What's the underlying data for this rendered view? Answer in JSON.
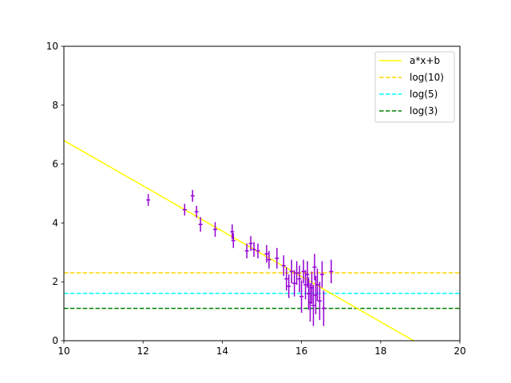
{
  "chart_data": {
    "type": "scatter",
    "title": "",
    "xlabel": "",
    "ylabel": "",
    "xlim": [
      10,
      20
    ],
    "ylim": [
      0,
      10
    ],
    "xticks": [
      "10",
      "12",
      "14",
      "16",
      "18",
      "20"
    ],
    "yticks": [
      "0",
      "2",
      "4",
      "6",
      "8",
      "10"
    ],
    "grid": false,
    "legend": {
      "placement": "top-right",
      "entries": [
        {
          "label": "a*x+b",
          "color": "#ffff00",
          "style": "solid"
        },
        {
          "label": "log(10)",
          "color": "#ffd700",
          "style": "dashed"
        },
        {
          "label": "log(5)",
          "color": "#00ffff",
          "style": "dashed"
        },
        {
          "label": "log(3)",
          "color": "#008000",
          "style": "dashed"
        }
      ]
    },
    "fit_line": {
      "name": "a*x+b",
      "slope": -0.77,
      "intercept": 14.5,
      "color": "#ffff00"
    },
    "hlines": [
      {
        "name": "log(10)",
        "y": 2.3026,
        "color": "#ffd700"
      },
      {
        "name": "log(5)",
        "y": 1.6094,
        "color": "#00ffff"
      },
      {
        "name": "log(3)",
        "y": 1.0986,
        "color": "#008000"
      }
    ],
    "series": [
      {
        "color": "#9400d3",
        "points": [
          {
            "x": 12.13,
            "y": 4.78,
            "xerr": 0.05,
            "yerr": 0.2
          },
          {
            "x": 13.05,
            "y": 4.45,
            "xerr": 0.05,
            "yerr": 0.2
          },
          {
            "x": 13.25,
            "y": 4.92,
            "xerr": 0.05,
            "yerr": 0.2
          },
          {
            "x": 13.35,
            "y": 4.38,
            "xerr": 0.05,
            "yerr": 0.2
          },
          {
            "x": 13.45,
            "y": 3.95,
            "xerr": 0.05,
            "yerr": 0.25
          },
          {
            "x": 13.82,
            "y": 3.78,
            "xerr": 0.05,
            "yerr": 0.25
          },
          {
            "x": 14.25,
            "y": 3.7,
            "xerr": 0.05,
            "yerr": 0.25
          },
          {
            "x": 14.28,
            "y": 3.4,
            "xerr": 0.05,
            "yerr": 0.25
          },
          {
            "x": 14.62,
            "y": 3.05,
            "xerr": 0.05,
            "yerr": 0.25
          },
          {
            "x": 14.72,
            "y": 3.3,
            "xerr": 0.05,
            "yerr": 0.25
          },
          {
            "x": 14.8,
            "y": 3.1,
            "xerr": 0.05,
            "yerr": 0.25
          },
          {
            "x": 14.9,
            "y": 3.05,
            "xerr": 0.05,
            "yerr": 0.25
          },
          {
            "x": 15.12,
            "y": 2.95,
            "xerr": 0.05,
            "yerr": 0.3
          },
          {
            "x": 15.18,
            "y": 2.75,
            "xerr": 0.05,
            "yerr": 0.3
          },
          {
            "x": 15.38,
            "y": 2.8,
            "xerr": 0.05,
            "yerr": 0.35
          },
          {
            "x": 15.55,
            "y": 2.55,
            "xerr": 0.05,
            "yerr": 0.35
          },
          {
            "x": 15.62,
            "y": 2.1,
            "xerr": 0.05,
            "yerr": 0.4
          },
          {
            "x": 15.68,
            "y": 1.85,
            "xerr": 0.05,
            "yerr": 0.4
          },
          {
            "x": 15.75,
            "y": 2.35,
            "xerr": 0.05,
            "yerr": 0.4
          },
          {
            "x": 15.82,
            "y": 1.95,
            "xerr": 0.05,
            "yerr": 0.45
          },
          {
            "x": 15.88,
            "y": 2.3,
            "xerr": 0.05,
            "yerr": 0.4
          },
          {
            "x": 15.95,
            "y": 2.1,
            "xerr": 0.05,
            "yerr": 0.45
          },
          {
            "x": 16.0,
            "y": 1.5,
            "xerr": 0.05,
            "yerr": 0.55
          },
          {
            "x": 16.05,
            "y": 2.35,
            "xerr": 0.05,
            "yerr": 0.4
          },
          {
            "x": 16.1,
            "y": 1.9,
            "xerr": 0.05,
            "yerr": 0.5
          },
          {
            "x": 16.15,
            "y": 2.25,
            "xerr": 0.05,
            "yerr": 0.45
          },
          {
            "x": 16.18,
            "y": 1.6,
            "xerr": 0.05,
            "yerr": 0.55
          },
          {
            "x": 16.22,
            "y": 1.3,
            "xerr": 0.05,
            "yerr": 0.65
          },
          {
            "x": 16.26,
            "y": 1.8,
            "xerr": 0.05,
            "yerr": 0.55
          },
          {
            "x": 16.3,
            "y": 1.2,
            "xerr": 0.05,
            "yerr": 0.7
          },
          {
            "x": 16.33,
            "y": 2.5,
            "xerr": 0.05,
            "yerr": 0.45
          },
          {
            "x": 16.36,
            "y": 1.55,
            "xerr": 0.05,
            "yerr": 0.65
          },
          {
            "x": 16.4,
            "y": 1.9,
            "xerr": 0.05,
            "yerr": 0.55
          },
          {
            "x": 16.46,
            "y": 1.35,
            "xerr": 0.05,
            "yerr": 0.65
          },
          {
            "x": 16.52,
            "y": 2.25,
            "xerr": 0.05,
            "yerr": 0.45
          },
          {
            "x": 16.56,
            "y": 1.1,
            "xerr": 0.05,
            "yerr": 0.6
          },
          {
            "x": 16.75,
            "y": 2.35,
            "xerr": 0.05,
            "yerr": 0.4
          }
        ]
      }
    ]
  }
}
